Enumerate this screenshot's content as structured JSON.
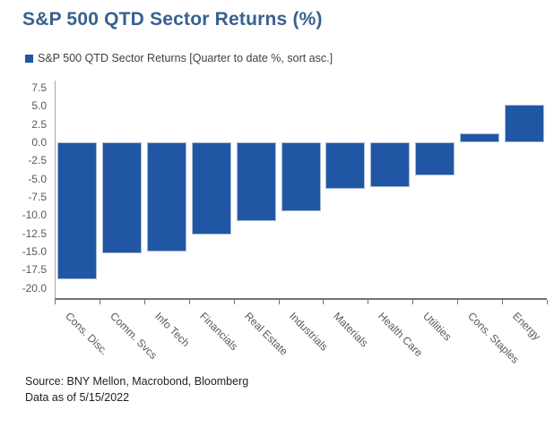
{
  "header": {
    "title": "S&P 500 QTD Sector Returns (%)"
  },
  "legend": {
    "label": "S&P 500 QTD Sector Returns [Quarter to date %, sort asc.]"
  },
  "footer": {
    "source": "Source: BNY Mellon, Macrobond, Bloomberg",
    "data_as_of": "Data as of 5/15/2022"
  },
  "colors": {
    "bar_blue": "#2156A4",
    "bar_border": "#aabdd5",
    "title_blue": "#38618F",
    "axis_gray": "#737373",
    "tick_text_gray": "#595959"
  },
  "chart_data": {
    "type": "bar",
    "title": "S&P 500 QTD Sector Returns (%)",
    "legend_entries": [
      "S&P 500 QTD Sector Returns [Quarter to date %, sort asc.]"
    ],
    "legend_position": "top-left",
    "grid": false,
    "xlabel": "",
    "ylabel": "",
    "categories": [
      "Cons. Disc.",
      "Comm. Svcs",
      "Info Tech",
      "Financials",
      "Real Estate",
      "Industrials",
      "Materials",
      "Health Care",
      "Utilities",
      "Cons. Staples",
      "Energy"
    ],
    "values": [
      -18.8,
      -15.2,
      -15.0,
      -12.7,
      -10.8,
      -9.5,
      -6.4,
      -6.1,
      -4.5,
      1.3,
      5.2
    ],
    "yticks": [
      7.5,
      5.0,
      2.5,
      0.0,
      -2.5,
      -5.0,
      -7.5,
      -10.0,
      -12.5,
      -15.0,
      -17.5,
      -20.0
    ],
    "ylim": [
      -21.4,
      8.5
    ],
    "sort": "asc"
  }
}
